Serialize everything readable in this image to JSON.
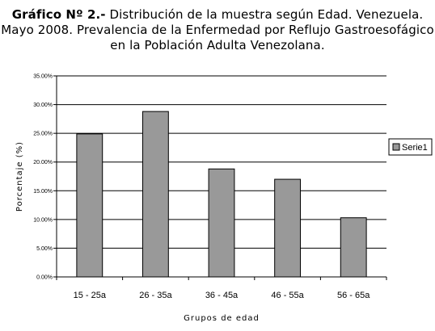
{
  "title": {
    "lead": "Gráfico Nº 2.-",
    "line1": "Distribución de la muestra según Edad. Venezuela.",
    "line2": "Mayo 2008. Prevalencia de la Enfermedad por Reflujo Gastroesofágico",
    "line3": "en la Población Adulta Venezolana."
  },
  "chart_data": {
    "type": "bar",
    "categories": [
      "15 - 25a",
      "26 - 35a",
      "36 - 45a",
      "46 - 55a",
      "56 - 65a"
    ],
    "series": [
      {
        "name": "Serie1",
        "values": [
          24.9,
          28.8,
          18.8,
          17.0,
          10.3
        ]
      }
    ],
    "ylim": [
      0,
      35
    ],
    "yticks": [
      "0.00%",
      "5.00%",
      "10.00%",
      "15.00%",
      "20.00%",
      "25.00%",
      "30.00%",
      "35.00%"
    ],
    "xlabel": "Grupos de edad",
    "ylabel": "Porcentaje (%)",
    "grid": true,
    "legend": "right",
    "colors": {
      "bar": "#999999",
      "bar_stroke": "#000000",
      "grid": "#000000"
    }
  }
}
